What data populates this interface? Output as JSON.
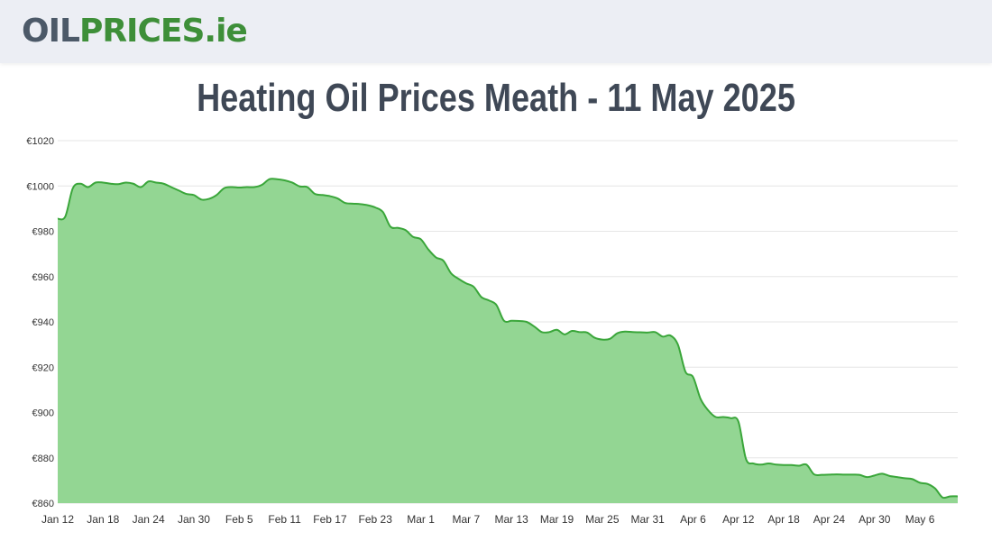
{
  "header": {
    "logo": {
      "part1": "OIL",
      "part2": "PRICES",
      "part3": ".ie"
    }
  },
  "page_title": "Heating Oil Prices Meath - 11 May 2025",
  "colors": {
    "line": "#3aa63a",
    "fill": "#93d693",
    "grid": "#e6e6e6",
    "axis_text": "#333333",
    "title": "#3f4856",
    "header_bg": "#eceef4"
  },
  "chart_data": {
    "type": "area",
    "title": "Heating Oil Prices Meath - 11 May 2025",
    "xlabel": "",
    "ylabel": "",
    "ylim": [
      860,
      1020
    ],
    "y_ticks": [
      860,
      880,
      900,
      920,
      940,
      960,
      980,
      1000,
      1020
    ],
    "y_tick_labels": [
      "€860",
      "€880",
      "€900",
      "€920",
      "€940",
      "€960",
      "€980",
      "€1000",
      "€1020"
    ],
    "x_start": "2025-01-12",
    "x_end": "2025-05-11",
    "x_ticks": [
      "2025-01-12",
      "2025-01-18",
      "2025-01-24",
      "2025-01-30",
      "2025-02-05",
      "2025-02-11",
      "2025-02-17",
      "2025-02-23",
      "2025-03-01",
      "2025-03-07",
      "2025-03-13",
      "2025-03-19",
      "2025-03-25",
      "2025-03-31",
      "2025-04-06",
      "2025-04-12",
      "2025-04-18",
      "2025-04-24",
      "2025-04-30",
      "2025-05-06"
    ],
    "x_tick_labels": [
      "Jan 12",
      "Jan 18",
      "Jan 24",
      "Jan 30",
      "Feb 5",
      "Feb 11",
      "Feb 17",
      "Feb 23",
      "Mar 1",
      "Mar 7",
      "Mar 13",
      "Mar 19",
      "Mar 25",
      "Mar 31",
      "Apr 6",
      "Apr 12",
      "Apr 18",
      "Apr 24",
      "Apr 30",
      "May 6"
    ],
    "grid": true,
    "legend": "none",
    "series": [
      {
        "x": [
          "2025-01-12",
          "2025-01-13",
          "2025-01-14",
          "2025-01-15",
          "2025-01-16",
          "2025-01-17",
          "2025-01-18",
          "2025-01-19",
          "2025-01-20",
          "2025-01-21",
          "2025-01-22",
          "2025-01-23",
          "2025-01-24",
          "2025-01-25",
          "2025-01-26",
          "2025-01-27",
          "2025-01-28",
          "2025-01-29",
          "2025-01-30",
          "2025-01-31",
          "2025-02-01",
          "2025-02-02",
          "2025-02-03",
          "2025-02-04",
          "2025-02-05",
          "2025-02-06",
          "2025-02-07",
          "2025-02-08",
          "2025-02-09",
          "2025-02-10",
          "2025-02-11",
          "2025-02-12",
          "2025-02-13",
          "2025-02-14",
          "2025-02-15",
          "2025-02-16",
          "2025-02-17",
          "2025-02-18",
          "2025-02-19",
          "2025-02-20",
          "2025-02-21",
          "2025-02-22",
          "2025-02-23",
          "2025-02-24",
          "2025-02-25",
          "2025-02-26",
          "2025-02-27",
          "2025-02-28",
          "2025-03-01",
          "2025-03-02",
          "2025-03-03",
          "2025-03-04",
          "2025-03-05",
          "2025-03-06",
          "2025-03-07",
          "2025-03-08",
          "2025-03-09",
          "2025-03-10",
          "2025-03-11",
          "2025-03-12",
          "2025-03-13",
          "2025-03-14",
          "2025-03-15",
          "2025-03-16",
          "2025-03-17",
          "2025-03-18",
          "2025-03-19",
          "2025-03-20",
          "2025-03-21",
          "2025-03-22",
          "2025-03-23",
          "2025-03-24",
          "2025-03-25",
          "2025-03-26",
          "2025-03-27",
          "2025-03-28",
          "2025-03-29",
          "2025-03-30",
          "2025-03-31",
          "2025-04-01",
          "2025-04-02",
          "2025-04-03",
          "2025-04-04",
          "2025-04-05",
          "2025-04-06",
          "2025-04-07",
          "2025-04-08",
          "2025-04-09",
          "2025-04-10",
          "2025-04-11",
          "2025-04-12",
          "2025-04-13",
          "2025-04-14",
          "2025-04-15",
          "2025-04-16",
          "2025-04-17",
          "2025-04-18",
          "2025-04-19",
          "2025-04-20",
          "2025-04-21",
          "2025-04-22",
          "2025-04-23",
          "2025-04-24",
          "2025-04-25",
          "2025-04-26",
          "2025-04-27",
          "2025-04-28",
          "2025-04-29",
          "2025-04-30",
          "2025-05-01",
          "2025-05-02",
          "2025-05-03",
          "2025-05-04",
          "2025-05-05",
          "2025-05-06",
          "2025-05-07",
          "2025-05-08",
          "2025-05-09",
          "2025-05-10",
          "2025-05-11"
        ],
        "values": [
          985.5,
          986.5,
          999,
          1001,
          999.5,
          1001.5,
          1001.5,
          1001,
          1000.8,
          1001.5,
          1001,
          999.5,
          1002,
          1001.5,
          1001,
          999.5,
          998,
          996.5,
          996,
          994,
          994.3,
          996,
          999,
          999.5,
          999.3,
          999.5,
          999.5,
          1000.5,
          1003,
          1003,
          1002.5,
          1001.5,
          999.8,
          999.5,
          996.5,
          996,
          995.5,
          994.5,
          992.5,
          992.2,
          992,
          991.5,
          990.5,
          988.5,
          982,
          981.5,
          980.5,
          977.5,
          976.5,
          972,
          968.5,
          967,
          961.5,
          959,
          957,
          955.5,
          951,
          949.5,
          947.5,
          940.5,
          940.5,
          940.4,
          940,
          938,
          935.5,
          935.5,
          936.5,
          934.5,
          936,
          935.5,
          935.3,
          933,
          932.2,
          932.5,
          935,
          935.7,
          935.5,
          935.4,
          935.3,
          935.5,
          933.5,
          934,
          930,
          918,
          915.7,
          906,
          901,
          898,
          898,
          897.5,
          896,
          879.5,
          877.5,
          877,
          877.5,
          877,
          876.8,
          876.8,
          876.5,
          877,
          872.7,
          872.5,
          872.6,
          872.7,
          872.6,
          872.6,
          872.5,
          871.5,
          872.2,
          873,
          872,
          871.5,
          871,
          870.6,
          869,
          868.5,
          866.5,
          862.5,
          863,
          863
        ]
      }
    ]
  }
}
